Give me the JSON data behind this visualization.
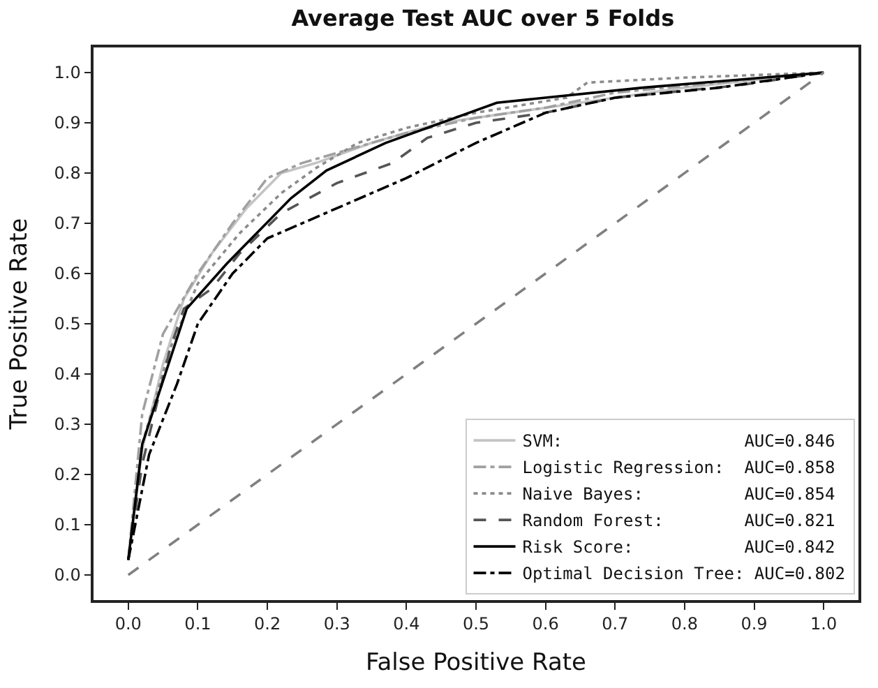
{
  "chart_data": {
    "type": "line",
    "title": "Average Test AUC over 5 Folds",
    "xlabel": "False Positive Rate",
    "ylabel": "True Positive Rate",
    "xlim": [
      -0.05,
      1.05
    ],
    "ylim": [
      -0.05,
      1.05
    ],
    "xticks": [
      {
        "value": 0,
        "label": "0.0"
      },
      0.1,
      0.2,
      0.3,
      0.4,
      0.5,
      0.6,
      0.7,
      0.8,
      0.9,
      {
        "value": 1,
        "label": "1.0"
      }
    ],
    "yticks": [
      {
        "value": 0,
        "label": "0.0"
      },
      0.1,
      0.2,
      0.3,
      0.4,
      0.5,
      0.6,
      0.7,
      0.8,
      0.9,
      {
        "value": 1,
        "label": "1.0"
      }
    ],
    "legend": "bottom right",
    "marker": "none",
    "series": [
      {
        "name": "SVM:                  AUC=0.846",
        "color": "#c4c4c4",
        "line_style": "solid",
        "x": [
          0,
          0.02,
          0.05,
          0.08,
          0.12,
          0.17,
          0.22,
          0.27,
          0.35,
          0.45,
          0.55,
          0.65,
          0.8,
          1
        ],
        "values": [
          0.03,
          0.25,
          0.42,
          0.55,
          0.64,
          0.73,
          0.8,
          0.82,
          0.86,
          0.9,
          0.92,
          0.94,
          0.97,
          1
        ]
      },
      {
        "name": "Logistic Regression:  AUC=0.858",
        "color": "#a0a0a0",
        "line_style": "dashdot",
        "x": [
          0,
          0.02,
          0.05,
          0.1,
          0.15,
          0.2,
          0.25,
          0.3,
          0.4,
          0.5,
          0.6,
          0.7,
          0.85,
          1
        ],
        "values": [
          0.03,
          0.32,
          0.48,
          0.6,
          0.7,
          0.79,
          0.82,
          0.84,
          0.88,
          0.91,
          0.93,
          0.96,
          0.98,
          1
        ]
      },
      {
        "name": "Naive Bayes:          AUC=0.854",
        "color": "#8c8c8c",
        "line_style": "dotted",
        "x": [
          0,
          0.02,
          0.06,
          0.1,
          0.16,
          0.22,
          0.27,
          0.33,
          0.4,
          0.5,
          0.63,
          0.66,
          0.8,
          1
        ],
        "values": [
          0.03,
          0.26,
          0.45,
          0.58,
          0.68,
          0.76,
          0.81,
          0.86,
          0.89,
          0.92,
          0.95,
          0.98,
          0.99,
          1
        ]
      },
      {
        "name": "Random Forest:        AUC=0.821",
        "color": "#555555",
        "line_style": "dashed",
        "x": [
          0,
          0.02,
          0.06,
          0.08,
          0.12,
          0.16,
          0.22,
          0.3,
          0.38,
          0.43,
          0.5,
          0.6,
          0.7,
          0.88,
          1
        ],
        "values": [
          0.03,
          0.22,
          0.45,
          0.53,
          0.57,
          0.64,
          0.72,
          0.78,
          0.82,
          0.87,
          0.9,
          0.92,
          0.95,
          0.975,
          1
        ]
      },
      {
        "name": "Risk Score:           AUC=0.842",
        "color": "#000000",
        "line_style": "solid",
        "x": [
          0,
          0.02,
          0.084,
          0.142,
          0.234,
          0.285,
          0.37,
          0.53,
          0.74,
          1
        ],
        "values": [
          0.03,
          0.26,
          0.53,
          0.62,
          0.75,
          0.805,
          0.86,
          0.94,
          0.97,
          1
        ]
      },
      {
        "name": "Optimal Decision Tree: AUC=0.802",
        "color": "#000000",
        "line_style": "dashdot",
        "x": [
          0,
          0.03,
          0.07,
          0.1,
          0.15,
          0.2,
          0.3,
          0.4,
          0.5,
          0.6,
          0.7,
          0.85,
          1
        ],
        "values": [
          0.03,
          0.24,
          0.38,
          0.5,
          0.6,
          0.67,
          0.73,
          0.79,
          0.86,
          0.92,
          0.95,
          0.97,
          1
        ]
      },
      {
        "color": "#808080",
        "line_style": "dashed",
        "x": [
          0,
          1
        ],
        "values": [
          0,
          1
        ]
      }
    ]
  }
}
